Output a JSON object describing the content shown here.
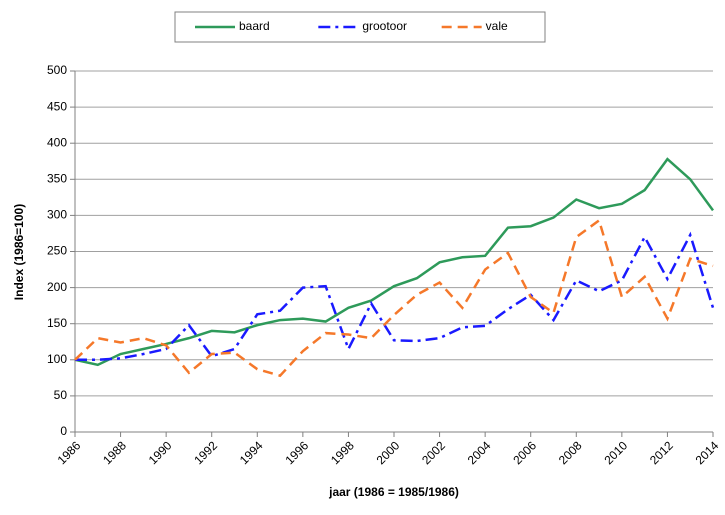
{
  "chart_data": {
    "type": "line",
    "x_label": "jaar (1986 = 1985/1986)",
    "y_label": "Index (1986=100)",
    "x": [
      1986,
      1987,
      1988,
      1989,
      1990,
      1991,
      1992,
      1993,
      1994,
      1995,
      1996,
      1997,
      1998,
      1999,
      2000,
      2001,
      2002,
      2003,
      2004,
      2005,
      2006,
      2007,
      2008,
      2009,
      2010,
      2011,
      2012,
      2013,
      2014
    ],
    "series": [
      {
        "name": "baard",
        "color": "#2e9a5a",
        "dash": "solid",
        "values": [
          100,
          93,
          108,
          115,
          122,
          130,
          140,
          138,
          148,
          155,
          157,
          153,
          172,
          182,
          202,
          213,
          235,
          242,
          244,
          283,
          285,
          297,
          322,
          310,
          316,
          335,
          378,
          350,
          307
        ]
      },
      {
        "name": "grootoor",
        "color": "#1a1aff",
        "dash": "dashdot",
        "values": [
          100,
          100,
          102,
          108,
          115,
          148,
          105,
          115,
          163,
          168,
          200,
          202,
          115,
          178,
          127,
          126,
          130,
          145,
          147,
          170,
          190,
          155,
          210,
          195,
          210,
          270,
          212,
          273,
          172
        ]
      },
      {
        "name": "vale",
        "color": "#f5782a",
        "dash": "dashed",
        "values": [
          100,
          130,
          124,
          130,
          120,
          82,
          108,
          110,
          87,
          78,
          112,
          137,
          135,
          130,
          162,
          190,
          207,
          172,
          225,
          248,
          187,
          165,
          270,
          293,
          187,
          215,
          157,
          240,
          230
        ]
      }
    ],
    "xlim": [
      1986,
      2014
    ],
    "xticks": [
      1986,
      1988,
      1990,
      1992,
      1994,
      1996,
      1998,
      2000,
      2002,
      2004,
      2006,
      2008,
      2010,
      2012,
      2014
    ],
    "ylim": [
      0,
      500
    ],
    "yticks": [
      0,
      50,
      100,
      150,
      200,
      250,
      300,
      350,
      400,
      450,
      500
    ],
    "grid": true,
    "legend": "top"
  }
}
